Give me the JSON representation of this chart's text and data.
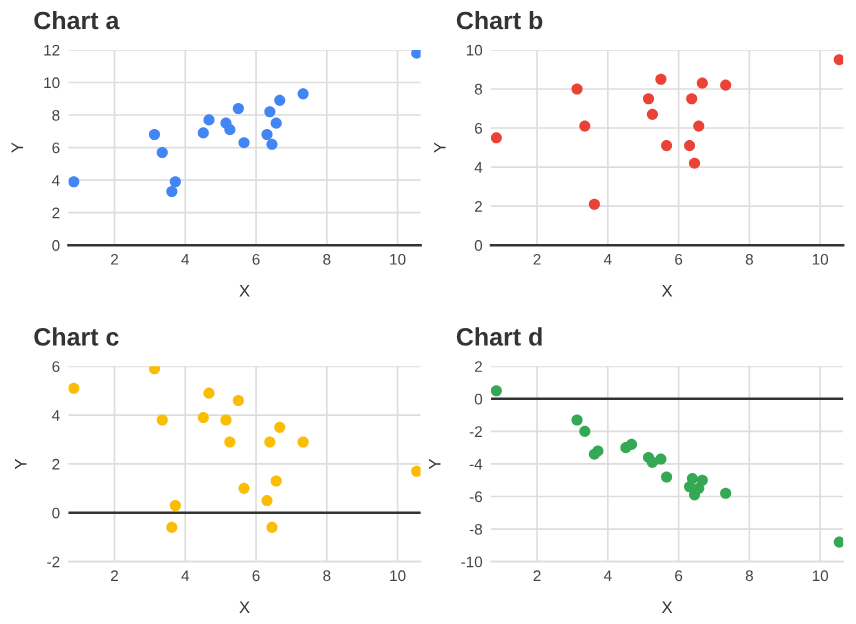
{
  "chart_data": [
    {
      "type": "scatter",
      "title": "Chart a",
      "xlabel": "X",
      "ylabel": "Y",
      "xlim": [
        0.7,
        10.65
      ],
      "xticks": [
        2,
        4,
        6,
        8,
        10
      ],
      "ylim": [
        0,
        12
      ],
      "yticks": [
        0,
        2,
        4,
        6,
        8,
        10,
        12
      ],
      "grid": true,
      "marker": "circle",
      "series": [
        {
          "color": "#4285f4",
          "x": [
            0.85,
            3.13,
            3.35,
            3.62,
            3.72,
            4.51,
            4.67,
            5.15,
            5.26,
            5.5,
            5.66,
            6.31,
            6.39,
            6.45,
            6.57,
            6.67,
            7.33,
            10.54
          ],
          "values": [
            3.9,
            6.8,
            5.7,
            3.3,
            3.9,
            6.9,
            7.7,
            7.5,
            7.1,
            8.4,
            6.3,
            6.8,
            8.2,
            6.2,
            7.5,
            8.9,
            9.3,
            11.8
          ]
        }
      ]
    },
    {
      "type": "scatter",
      "title": "Chart b",
      "xlabel": "X",
      "ylabel": "Y",
      "xlim": [
        0.7,
        10.65
      ],
      "xticks": [
        2,
        4,
        6,
        8,
        10
      ],
      "ylim": [
        0,
        10
      ],
      "yticks": [
        0,
        2,
        4,
        6,
        8,
        10
      ],
      "grid": true,
      "marker": "circle",
      "series": [
        {
          "color": "#ea4335",
          "x": [
            0.85,
            3.13,
            3.35,
            3.62,
            5.15,
            5.26,
            5.5,
            5.66,
            6.37,
            6.31,
            6.45,
            6.57,
            6.67,
            7.33,
            10.54
          ],
          "values": [
            5.5,
            8.0,
            6.1,
            2.1,
            7.5,
            6.7,
            8.5,
            5.1,
            7.5,
            5.1,
            4.2,
            6.1,
            8.3,
            8.2,
            9.5
          ]
        }
      ]
    },
    {
      "type": "scatter",
      "title": "Chart c",
      "xlabel": "X",
      "ylabel": "Y",
      "xlim": [
        0.7,
        10.65
      ],
      "xticks": [
        2,
        4,
        6,
        8,
        10
      ],
      "ylim": [
        -2,
        6
      ],
      "yticks": [
        -2,
        0,
        2,
        4,
        6
      ],
      "grid": true,
      "marker": "circle",
      "ref_lines": [
        {
          "axis": "y",
          "value": 0,
          "color": "#333333"
        }
      ],
      "series": [
        {
          "color": "#fbbc04",
          "x": [
            0.85,
            3.13,
            3.35,
            3.62,
            3.72,
            4.51,
            4.67,
            5.15,
            5.26,
            5.5,
            5.66,
            6.31,
            6.39,
            6.45,
            6.57,
            6.67,
            7.33,
            10.54
          ],
          "values": [
            5.1,
            5.9,
            3.8,
            -0.6,
            0.3,
            3.9,
            4.9,
            3.8,
            2.9,
            4.6,
            1.0,
            0.5,
            2.9,
            -0.6,
            1.3,
            3.5,
            2.9,
            1.7
          ]
        }
      ]
    },
    {
      "type": "scatter",
      "title": "Chart d",
      "xlabel": "X",
      "ylabel": "Y",
      "xlim": [
        0.7,
        10.65
      ],
      "xticks": [
        2,
        4,
        6,
        8,
        10
      ],
      "ylim": [
        -10,
        2
      ],
      "yticks": [
        -10,
        -8,
        -6,
        -4,
        -2,
        0,
        2
      ],
      "grid": true,
      "marker": "circle",
      "ref_lines": [
        {
          "axis": "y",
          "value": 0,
          "color": "#333333"
        }
      ],
      "series": [
        {
          "color": "#34a853",
          "x": [
            0.85,
            3.13,
            3.35,
            3.62,
            3.72,
            4.51,
            4.67,
            5.15,
            5.26,
            5.5,
            5.66,
            6.31,
            6.39,
            6.45,
            6.57,
            6.67,
            7.33,
            10.54
          ],
          "values": [
            0.5,
            -1.3,
            -2.0,
            -3.4,
            -3.2,
            -3.0,
            -2.8,
            -3.6,
            -3.9,
            -3.7,
            -4.8,
            -5.4,
            -4.9,
            -5.9,
            -5.5,
            -5.0,
            -5.8,
            -8.8
          ]
        }
      ]
    }
  ]
}
